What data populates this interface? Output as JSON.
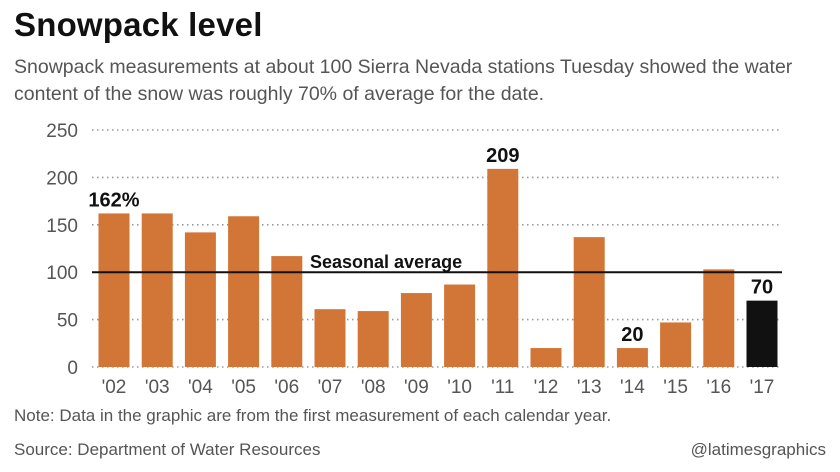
{
  "title": "Snowpack level",
  "subtitle": "Snowpack measurements at about 100 Sierra Nevada stations Tuesday showed the water content of the snow was roughly 70% of average for the date.",
  "note": "Note: Data in the graphic are from the first measurement of each calendar year.",
  "source": "Source: Department of Water Resources",
  "credit": "@latimesgraphics",
  "colors": {
    "bar": "#d27637",
    "highlight": "#111111",
    "grid": "#9a9a9a",
    "average_line": "#111111"
  },
  "chart_data": {
    "type": "bar",
    "categories": [
      "'02",
      "'03",
      "'04",
      "'05",
      "'06",
      "'07",
      "'08",
      "'09",
      "'10",
      "'11",
      "'12",
      "'13",
      "'14",
      "'15",
      "'16",
      "'17"
    ],
    "values": [
      162,
      162,
      142,
      159,
      117,
      61,
      59,
      78,
      87,
      209,
      20,
      137,
      20,
      47,
      103,
      70
    ],
    "highlight_index": 15,
    "data_labels": [
      {
        "index": 0,
        "text": "162%"
      },
      {
        "index": 9,
        "text": "209"
      },
      {
        "index": 12,
        "text": "20"
      },
      {
        "index": 15,
        "text": "70"
      }
    ],
    "yticks": [
      0,
      50,
      100,
      150,
      200,
      250
    ],
    "ylim": [
      0,
      250
    ],
    "reference_line": {
      "value": 100,
      "label": "Seasonal average"
    },
    "grid": true
  }
}
